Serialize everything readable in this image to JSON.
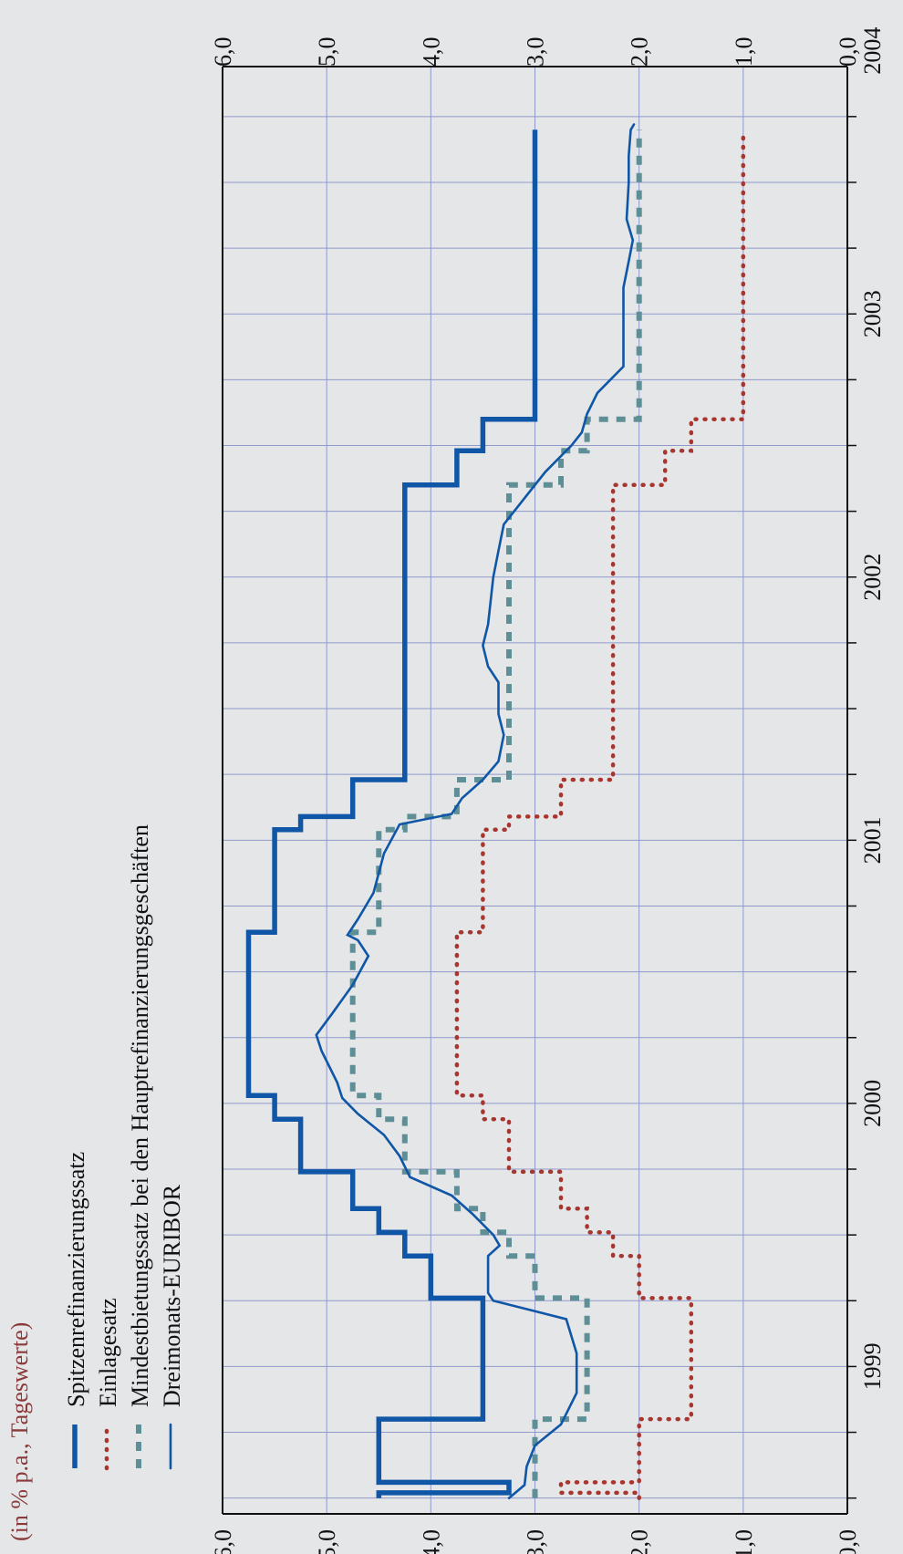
{
  "note": "(in % p.a., Tageswerte)",
  "colors": {
    "spitzen": "#0f56a6",
    "einlage": "#a8352e",
    "mindest": "#5f8f96",
    "euribor": "#0f56a6",
    "grid": "#8f99cc",
    "background": "#e5e6e8"
  },
  "chart_data": {
    "type": "line",
    "orientation": "rotated-90-clockwise",
    "xlabel": "",
    "ylabel": "",
    "x_ticks": [
      "1999",
      "2000",
      "2001",
      "2002",
      "2003",
      "2004"
    ],
    "x_range": [
      1999.0,
      2004.25
    ],
    "ylim": [
      0,
      6
    ],
    "y_ticks": [
      "0,0",
      "1,0",
      "2,0",
      "3,0",
      "4,0",
      "5,0",
      "6,0"
    ],
    "grid": true,
    "legend_position": "top-left",
    "series": [
      {
        "name": "Spitzenrefinanzierungssatz",
        "style": "thick-solid",
        "points": [
          [
            1999.0,
            4.5
          ],
          [
            1999.02,
            4.5
          ],
          [
            1999.02,
            3.25
          ],
          [
            1999.06,
            3.25
          ],
          [
            1999.06,
            4.5
          ],
          [
            1999.3,
            4.5
          ],
          [
            1999.3,
            3.5
          ],
          [
            1999.76,
            3.5
          ],
          [
            1999.76,
            4.0
          ],
          [
            1999.92,
            4.0
          ],
          [
            1999.92,
            4.25
          ],
          [
            2000.01,
            4.25
          ],
          [
            2000.01,
            4.5
          ],
          [
            2000.1,
            4.5
          ],
          [
            2000.1,
            4.75
          ],
          [
            2000.24,
            4.75
          ],
          [
            2000.24,
            5.25
          ],
          [
            2000.44,
            5.25
          ],
          [
            2000.44,
            5.5
          ],
          [
            2000.53,
            5.5
          ],
          [
            2000.53,
            5.75
          ],
          [
            2001.15,
            5.75
          ],
          [
            2001.15,
            5.5
          ],
          [
            2001.54,
            5.5
          ],
          [
            2001.54,
            5.25
          ],
          [
            2001.59,
            5.25
          ],
          [
            2001.59,
            4.75
          ],
          [
            2001.73,
            4.75
          ],
          [
            2001.73,
            4.25
          ],
          [
            2002.85,
            4.25
          ],
          [
            2002.85,
            3.75
          ],
          [
            2002.98,
            3.75
          ],
          [
            2002.98,
            3.5
          ],
          [
            2003.1,
            3.5
          ],
          [
            2003.1,
            3.0
          ],
          [
            2004.2,
            3.0
          ]
        ]
      },
      {
        "name": "Einlagesatz",
        "style": "dotted",
        "points": [
          [
            1999.0,
            2.0
          ],
          [
            1999.02,
            2.0
          ],
          [
            1999.02,
            2.75
          ],
          [
            1999.06,
            2.75
          ],
          [
            1999.06,
            2.0
          ],
          [
            1999.3,
            2.0
          ],
          [
            1999.3,
            1.5
          ],
          [
            1999.76,
            1.5
          ],
          [
            1999.76,
            2.0
          ],
          [
            1999.92,
            2.0
          ],
          [
            1999.92,
            2.25
          ],
          [
            2000.01,
            2.25
          ],
          [
            2000.01,
            2.5
          ],
          [
            2000.1,
            2.5
          ],
          [
            2000.1,
            2.75
          ],
          [
            2000.24,
            2.75
          ],
          [
            2000.24,
            3.25
          ],
          [
            2000.44,
            3.25
          ],
          [
            2000.44,
            3.5
          ],
          [
            2000.53,
            3.5
          ],
          [
            2000.53,
            3.75
          ],
          [
            2001.15,
            3.75
          ],
          [
            2001.15,
            3.5
          ],
          [
            2001.54,
            3.5
          ],
          [
            2001.54,
            3.25
          ],
          [
            2001.59,
            3.25
          ],
          [
            2001.59,
            2.75
          ],
          [
            2001.73,
            2.75
          ],
          [
            2001.73,
            2.25
          ],
          [
            2002.85,
            2.25
          ],
          [
            2002.85,
            1.75
          ],
          [
            2002.98,
            1.75
          ],
          [
            2002.98,
            1.5
          ],
          [
            2003.1,
            1.5
          ],
          [
            2003.1,
            1.0
          ],
          [
            2004.2,
            1.0
          ]
        ]
      },
      {
        "name": "Mindestbietungssatz bei den Hauptrefinanzierungsgeschäften",
        "style": "dashed",
        "points": [
          [
            1999.0,
            3.0
          ],
          [
            1999.3,
            3.0
          ],
          [
            1999.3,
            2.5
          ],
          [
            1999.76,
            2.5
          ],
          [
            1999.76,
            3.0
          ],
          [
            1999.92,
            3.0
          ],
          [
            1999.92,
            3.25
          ],
          [
            2000.01,
            3.25
          ],
          [
            2000.01,
            3.5
          ],
          [
            2000.1,
            3.5
          ],
          [
            2000.1,
            3.75
          ],
          [
            2000.24,
            3.75
          ],
          [
            2000.24,
            4.25
          ],
          [
            2000.44,
            4.25
          ],
          [
            2000.44,
            4.5
          ],
          [
            2000.53,
            4.5
          ],
          [
            2000.53,
            4.75
          ],
          [
            2001.15,
            4.75
          ],
          [
            2001.15,
            4.5
          ],
          [
            2001.54,
            4.5
          ],
          [
            2001.54,
            4.25
          ],
          [
            2001.59,
            4.25
          ],
          [
            2001.59,
            3.75
          ],
          [
            2001.73,
            3.75
          ],
          [
            2001.73,
            3.25
          ],
          [
            2002.85,
            3.25
          ],
          [
            2002.85,
            2.75
          ],
          [
            2002.98,
            2.75
          ],
          [
            2002.98,
            2.5
          ],
          [
            2003.1,
            2.5
          ],
          [
            2003.1,
            2.0
          ],
          [
            2004.2,
            2.0
          ]
        ]
      },
      {
        "name": "Dreimonats-EURIBOR",
        "style": "thin-solid",
        "points": [
          [
            1999.0,
            3.25
          ],
          [
            1999.05,
            3.1
          ],
          [
            1999.12,
            3.08
          ],
          [
            1999.2,
            3.0
          ],
          [
            1999.28,
            2.75
          ],
          [
            1999.4,
            2.6
          ],
          [
            1999.55,
            2.6
          ],
          [
            1999.68,
            2.7
          ],
          [
            1999.71,
            3.0
          ],
          [
            1999.75,
            3.4
          ],
          [
            1999.78,
            3.45
          ],
          [
            1999.92,
            3.45
          ],
          [
            1999.96,
            3.34
          ],
          [
            2000.0,
            3.4
          ],
          [
            2000.08,
            3.6
          ],
          [
            2000.15,
            3.8
          ],
          [
            2000.22,
            4.2
          ],
          [
            2000.3,
            4.3
          ],
          [
            2000.38,
            4.45
          ],
          [
            2000.46,
            4.7
          ],
          [
            2000.52,
            4.85
          ],
          [
            2000.58,
            4.9
          ],
          [
            2000.7,
            5.05
          ],
          [
            2000.76,
            5.1
          ],
          [
            2000.84,
            4.95
          ],
          [
            2000.95,
            4.75
          ],
          [
            2001.06,
            4.6
          ],
          [
            2001.12,
            4.7
          ],
          [
            2001.14,
            4.8
          ],
          [
            2001.2,
            4.7
          ],
          [
            2001.3,
            4.55
          ],
          [
            2001.45,
            4.45
          ],
          [
            2001.56,
            4.3
          ],
          [
            2001.6,
            3.8
          ],
          [
            2001.66,
            3.7
          ],
          [
            2001.73,
            3.5
          ],
          [
            2001.8,
            3.35
          ],
          [
            2001.9,
            3.3
          ],
          [
            2001.98,
            3.35
          ],
          [
            2002.1,
            3.35
          ],
          [
            2002.16,
            3.45
          ],
          [
            2002.24,
            3.5
          ],
          [
            2002.32,
            3.45
          ],
          [
            2002.5,
            3.4
          ],
          [
            2002.6,
            3.35
          ],
          [
            2002.7,
            3.3
          ],
          [
            2002.8,
            3.1
          ],
          [
            2002.9,
            2.9
          ],
          [
            2003.0,
            2.65
          ],
          [
            2003.05,
            2.55
          ],
          [
            2003.12,
            2.5
          ],
          [
            2003.2,
            2.4
          ],
          [
            2003.3,
            2.15
          ],
          [
            2003.4,
            2.15
          ],
          [
            2003.6,
            2.15
          ],
          [
            2003.7,
            2.1
          ],
          [
            2003.78,
            2.06
          ],
          [
            2003.86,
            2.12
          ],
          [
            2004.0,
            2.1
          ],
          [
            2004.1,
            2.1
          ],
          [
            2004.2,
            2.08
          ],
          [
            2004.22,
            2.05
          ]
        ]
      }
    ]
  }
}
